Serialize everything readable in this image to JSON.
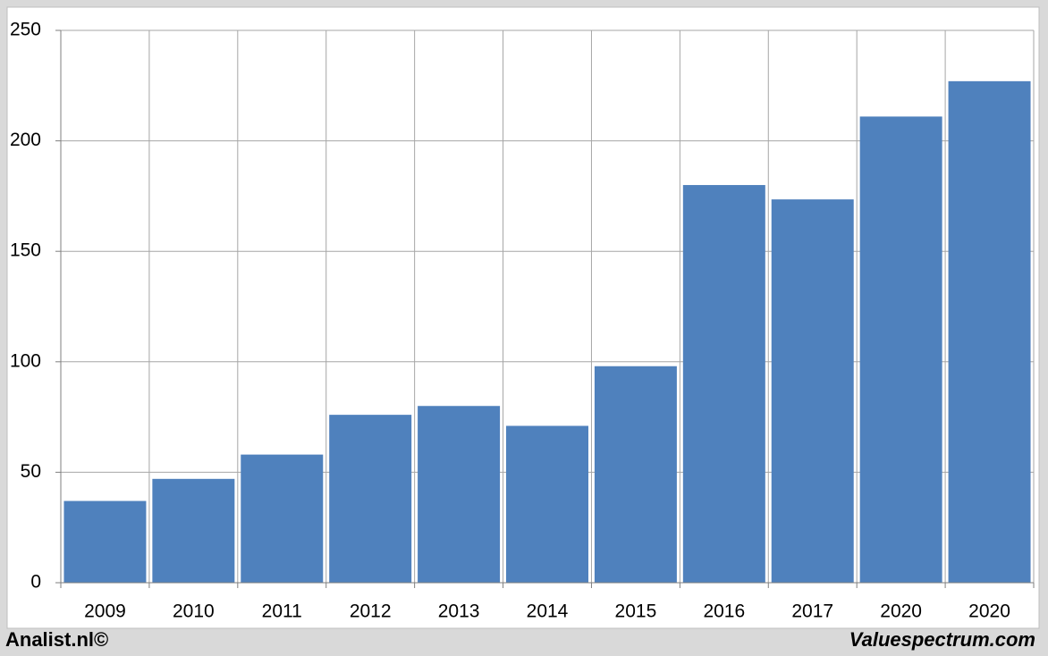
{
  "chart_data": {
    "type": "bar",
    "categories": [
      "2009",
      "2010",
      "2011",
      "2012",
      "2013",
      "2014",
      "2015",
      "2016",
      "2017",
      "2020",
      "2020"
    ],
    "values": [
      37,
      47,
      58,
      76,
      80,
      71,
      98,
      180,
      173.5,
      211,
      227
    ],
    "color": "#4f81bd",
    "ylim": [
      0,
      250
    ],
    "yticks": [
      0,
      50,
      100,
      150,
      200,
      250
    ],
    "grid": true,
    "footer_left": "Analist.nl©",
    "footer_right": "Valuespectrum.com"
  }
}
